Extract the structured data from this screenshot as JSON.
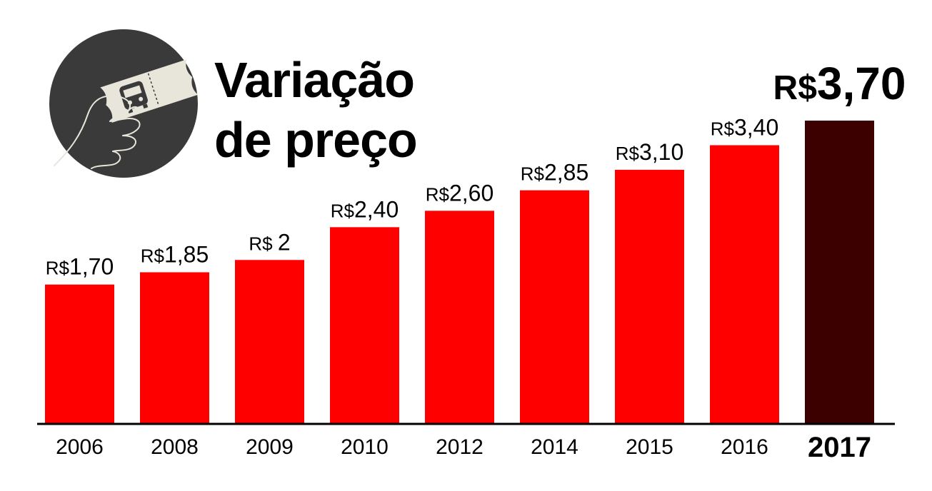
{
  "title": {
    "line1": "Variação",
    "line2": "de preço"
  },
  "icon": "hand-holding-bus-ticket-icon",
  "colors": {
    "bar": "#ff0000",
    "highlight_bar": "#3d0000",
    "icon_circle": "#3a3a3a",
    "ticket": "#e8e6da",
    "axis": "#000000"
  },
  "chart_data": {
    "type": "bar",
    "title": "Variação de preço",
    "categories": [
      "2006",
      "2008",
      "2009",
      "2010",
      "2012",
      "2014",
      "2015",
      "2016",
      "2017"
    ],
    "values": [
      1.7,
      1.85,
      2.0,
      2.4,
      2.6,
      2.85,
      3.1,
      3.4,
      3.7
    ],
    "value_labels": [
      {
        "prefix": "R$",
        "amount": "1,70"
      },
      {
        "prefix": "R$",
        "amount": "1,85"
      },
      {
        "prefix": "R$",
        "amount": "2"
      },
      {
        "prefix": "R$",
        "amount": "2,40"
      },
      {
        "prefix": "R$",
        "amount": "2,60"
      },
      {
        "prefix": "R$",
        "amount": "2,85"
      },
      {
        "prefix": "R$",
        "amount": "3,10"
      },
      {
        "prefix": "R$",
        "amount": "3,40"
      },
      {
        "prefix": "R$",
        "amount": "3,70"
      }
    ],
    "highlight": "2017",
    "xlabel": "",
    "ylabel": "",
    "ylim": [
      0,
      3.7
    ],
    "grid": false,
    "legend": "none"
  }
}
